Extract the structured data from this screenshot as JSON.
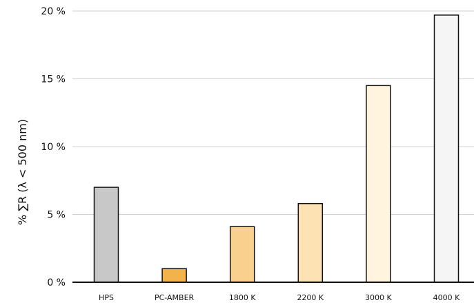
{
  "chart_data": {
    "type": "bar",
    "categories": [
      "HPS",
      "PC-AMBER",
      "1800 K",
      "2200 K",
      "3000 K",
      "4000 K"
    ],
    "values": [
      7.0,
      1.0,
      4.1,
      5.8,
      14.5,
      19.7
    ],
    "colors": [
      "#c8c8c8",
      "#f4b24a",
      "#f9d08e",
      "#fde3b4",
      "#fff4de",
      "#f5f5f5"
    ],
    "ylabel": "% ∑R (λ < 500 nm)",
    "ylim": [
      0,
      20
    ],
    "yticks": [
      0,
      5,
      10,
      15,
      20
    ],
    "ytick_labels": [
      "0 %",
      "5 %",
      "10 %",
      "15 %",
      "20 %"
    ],
    "grid": true
  }
}
